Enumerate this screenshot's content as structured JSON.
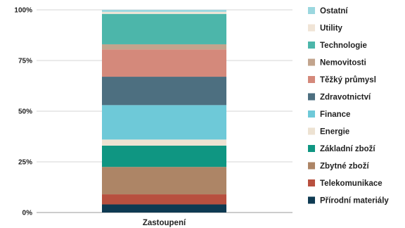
{
  "chart_data": {
    "type": "bar",
    "stacked": true,
    "categories": [
      "Zastoupení"
    ],
    "ylim": [
      0,
      100
    ],
    "yticks": [
      {
        "value": 0,
        "label": "0%"
      },
      {
        "value": 25,
        "label": "25%"
      },
      {
        "value": 50,
        "label": "50%"
      },
      {
        "value": 75,
        "label": "75%"
      },
      {
        "value": 100,
        "label": "100%"
      }
    ],
    "grid": true,
    "legend_position": "right",
    "series": [
      {
        "name": "Přírodní materiály",
        "values": [
          4.0
        ],
        "color": "#0e3a52"
      },
      {
        "name": "Telekomunikace",
        "values": [
          5.0
        ],
        "color": "#b8503f"
      },
      {
        "name": "Zbytné zboží",
        "values": [
          13.5
        ],
        "color": "#ad8566"
      },
      {
        "name": "Základní zboží",
        "values": [
          10.5
        ],
        "color": "#0f9682"
      },
      {
        "name": "Energie",
        "values": [
          3.0
        ],
        "color": "#ede2d2"
      },
      {
        "name": "Finance",
        "values": [
          17.0
        ],
        "color": "#6ec9d8"
      },
      {
        "name": "Zdravotnictví",
        "values": [
          14.0
        ],
        "color": "#4d6f80"
      },
      {
        "name": "Těžký průmysl",
        "values": [
          13.5
        ],
        "color": "#d4897b"
      },
      {
        "name": "Nemovitosti",
        "values": [
          2.5
        ],
        "color": "#c2a48d"
      },
      {
        "name": "Technologie",
        "values": [
          15.0
        ],
        "color": "#4cb6aa"
      },
      {
        "name": "Utility",
        "values": [
          1.0
        ],
        "color": "#f0e4d6"
      },
      {
        "name": "Ostatní",
        "values": [
          1.0
        ],
        "color": "#9bd7df"
      }
    ]
  }
}
